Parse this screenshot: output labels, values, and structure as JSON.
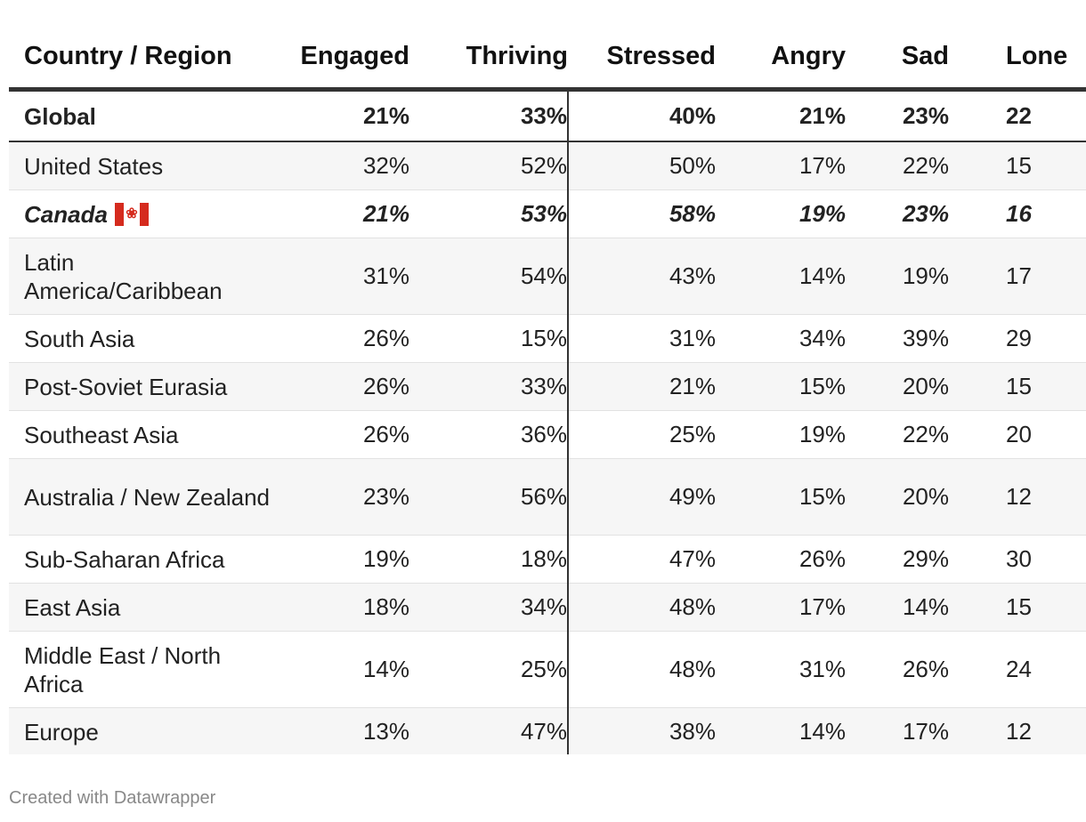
{
  "chart_data": {
    "type": "table",
    "columns": [
      "Country / Region",
      "Engaged",
      "Thriving",
      "Stressed",
      "Angry",
      "Sad",
      "Lone"
    ],
    "rows": [
      {
        "region": "Global",
        "values": [
          "21%",
          "33%",
          "40%",
          "21%",
          "23%",
          "22"
        ],
        "style": "bold"
      },
      {
        "region": "United States",
        "values": [
          "32%",
          "52%",
          "50%",
          "17%",
          "22%",
          "15"
        ]
      },
      {
        "region": "Canada",
        "values": [
          "21%",
          "53%",
          "58%",
          "19%",
          "23%",
          "16"
        ],
        "style": "bold-italic",
        "flag": "canada-flag"
      },
      {
        "region": "Latin America/Caribbean",
        "values": [
          "31%",
          "54%",
          "43%",
          "14%",
          "19%",
          "17"
        ]
      },
      {
        "region": "South Asia",
        "values": [
          "26%",
          "15%",
          "31%",
          "34%",
          "39%",
          "29"
        ]
      },
      {
        "region": "Post-Soviet Eurasia",
        "values": [
          "26%",
          "33%",
          "21%",
          "15%",
          "20%",
          "15"
        ]
      },
      {
        "region": "Southeast Asia",
        "values": [
          "26%",
          "36%",
          "25%",
          "19%",
          "22%",
          "20"
        ]
      },
      {
        "region": "Australia / New Zealand",
        "values": [
          "23%",
          "56%",
          "49%",
          "15%",
          "20%",
          "12"
        ]
      },
      {
        "region": "Sub-Saharan Africa",
        "values": [
          "19%",
          "18%",
          "47%",
          "26%",
          "29%",
          "30"
        ]
      },
      {
        "region": "East Asia",
        "values": [
          "18%",
          "34%",
          "48%",
          "17%",
          "14%",
          "15"
        ]
      },
      {
        "region": "Middle East / North Africa",
        "values": [
          "14%",
          "25%",
          "48%",
          "31%",
          "26%",
          "24"
        ]
      },
      {
        "region": "Europe",
        "values": [
          "13%",
          "47%",
          "38%",
          "14%",
          "17%",
          "12"
        ]
      }
    ]
  },
  "footer": {
    "credit": "Created with Datawrapper"
  },
  "colors": {
    "rule": "#333333",
    "zebra": "#f6f6f6",
    "flag_red": "#d52b1e",
    "footer_text": "#888888"
  }
}
